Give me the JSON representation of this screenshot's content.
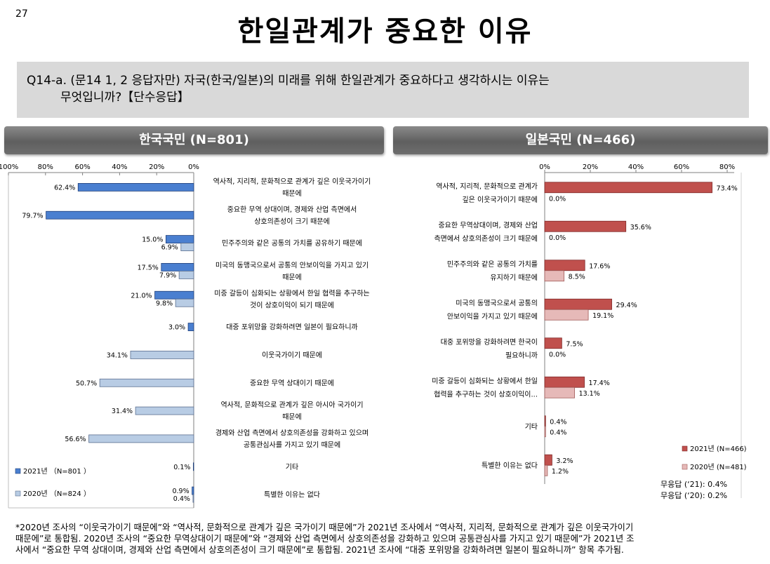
{
  "page_number": "27",
  "title": "한일관계가 중요한 이유",
  "question": {
    "line1": "Q14-a. (문14 1, 2 응답자만) 자국(한국/일본)의 미래를 위해 한일관계가 중요하다고 생각하시는 이유는",
    "line2": "무엇입니까?【단수응답】"
  },
  "korea_header": "한국국민 (N=801)",
  "japan_header": "일본국민 (N=466)",
  "korea_legend": [
    "2021년 （N=801 ）",
    "2020년 （N=824 ）"
  ],
  "japan_legend": [
    "2021년 (N=466)",
    "2020년 (N=481)"
  ],
  "japan_no_answer": [
    "무응답 (‘21): 0.4%",
    "무응답 (‘20): 0.2%"
  ],
  "footnote": [
    "*2020년 조사의 “이웃국가이기 때문에”와 “역사적, 문화적으로 관계가 깊은 국가이기 때문에”가 2021년 조사에서 “역사적, 지리적, 문화적으로 관계가 깊은 이웃국가이기",
    "때문에”로 통합됨. 2020년 조사의 “중요한 무역상대이기 때문에”와 “경제와 산업 측면에서 상호의존성을 강화하고 있으며 공통관심사를 가지고 있기 때문에”가 2021년 조",
    "사에서 “중요한 무역 상대이며, 경제와 산업 측면에서 상호의존성이 크기 때문에”로 통합됨. 2021년 조사에 “대중 포위망을 강화하려면 일본이 필요하니까” 항목 추가됨."
  ],
  "colors": {
    "y2021_korea": "#4a7fd0",
    "y2020_korea": "#b8cce4",
    "y2021_japan": "#c0504d",
    "y2020_japan": "#e6b9b8"
  },
  "chart_data": [
    {
      "type": "bar",
      "orientation": "horizontal-reversed",
      "xlim": [
        0,
        100
      ],
      "ticks": [
        "100%",
        "80%",
        "60%",
        "40%",
        "20%",
        "0%"
      ],
      "categories": [
        [
          "역사적, 지리적, 문화적으로 관계가 깊은 이웃국가이기",
          "때문에"
        ],
        [
          "중요한 무역 상대이며, 경제와 산업 측면에서",
          "상호의존성이 크기 때문에"
        ],
        [
          "민주주의와 같은 공통의 가치를 공유하기 때문에"
        ],
        [
          "미국의 동맹국으로서 공통의 안보이익을 가지고 있기",
          "때문에"
        ],
        [
          "미중 갈등이 심화되는 상황에서 한일 협력을 추구하는",
          "것이 상호이익이 되기 때문에"
        ],
        [
          "대중 포위망을 강화하려면 일본이 필요하니까"
        ],
        [
          "이웃국가이기 때문에"
        ],
        [
          "중요한 무역 상대이기 때문에"
        ],
        [
          "역사적, 문화적으로 관계가 깊은 아시아 국가이기",
          "때문에"
        ],
        [
          "경제와 산업 측면에서 상호의존성을 강화하고 있으며",
          "공통관심사를 가지고 있기 때문에"
        ],
        [
          "기타"
        ],
        [
          "특별한 이유는 없다"
        ]
      ],
      "series": [
        {
          "name": "2021년 （N=801 ）",
          "values": [
            62.4,
            79.7,
            15.0,
            17.5,
            21.0,
            3.0,
            null,
            null,
            null,
            null,
            0.1,
            0.9
          ],
          "labels": [
            "62.4%",
            "79.7%",
            "15.0%",
            "17.5%",
            "21.0%",
            "3.0%",
            "",
            "",
            "",
            "",
            "0.1%",
            "0.9%"
          ]
        },
        {
          "name": "2020년 （N=824 ）",
          "values": [
            null,
            null,
            6.9,
            7.9,
            9.8,
            null,
            34.1,
            50.7,
            31.4,
            56.6,
            null,
            0.4
          ],
          "labels": [
            "",
            "",
            "6.9%",
            "7.9%",
            "9.8%",
            "",
            "34.1%",
            "50.7%",
            "31.4%",
            "56.6%",
            "",
            "0.4%"
          ]
        }
      ]
    },
    {
      "type": "bar",
      "orientation": "horizontal",
      "xlim": [
        0,
        80
      ],
      "ticks": [
        "0%",
        "20%",
        "40%",
        "60%",
        "80%"
      ],
      "categories": [
        [
          "역사적, 지리적, 문화적으로 관계가",
          "깊은 이웃국가이기 때문에"
        ],
        [
          "중요한 무역상대이며, 경제와 산업",
          "측면에서 상호의존성이 크기 때문에"
        ],
        [
          "민주주의와 같은 공통의 가치를",
          "유지하기 때문에"
        ],
        [
          "미국의 동맹국으로서 공통의",
          "안보이익을 가지고 있기 때문에"
        ],
        [
          "대중 포위망을 강화하려면 한국이",
          "필요하니까"
        ],
        [
          "미중 갈등이 심화되는 상황에서 한일",
          "협력을 추구하는 것이 상호이익이..."
        ],
        [
          "기타"
        ],
        [
          "특별한 이유는 없다"
        ]
      ],
      "series": [
        {
          "name": "2021년 (N=466)",
          "values": [
            73.4,
            35.6,
            17.6,
            29.4,
            7.5,
            17.4,
            0.4,
            3.2
          ],
          "labels": [
            "73.4%",
            "35.6%",
            "17.6%",
            "29.4%",
            "7.5%",
            "17.4%",
            "0.4%",
            "3.2%"
          ]
        },
        {
          "name": "2020년 (N=481)",
          "values": [
            0.0,
            0.0,
            8.5,
            19.1,
            0.0,
            13.1,
            0.4,
            1.2
          ],
          "labels": [
            "0.0%",
            "0.0%",
            "8.5%",
            "19.1%",
            "0.0%",
            "13.1%",
            "0.4%",
            "1.2%"
          ]
        }
      ]
    }
  ]
}
